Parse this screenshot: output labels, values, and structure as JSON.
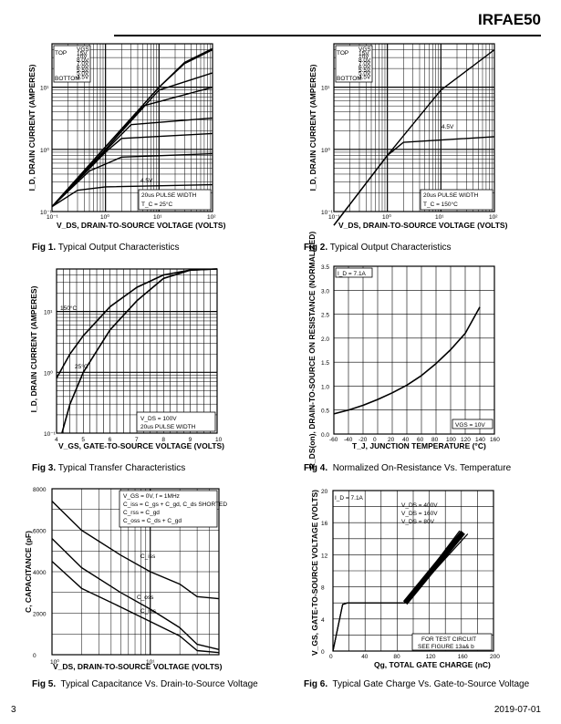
{
  "header": {
    "part_number": "IRFAE50"
  },
  "footer": {
    "page_number": "3",
    "date": "2019-07-01"
  },
  "figures": [
    {
      "caption_num": "Fig 1.",
      "caption_text": "Typical Output Characteristics",
      "ylabel": "I_D, DRAIN CURRENT (AMPERES)",
      "xlabel": "V_DS, DRAIN-TO-SOURCE VOLTAGE (VOLTS)",
      "x_ticks": [
        "10⁻¹",
        "10⁰",
        "10¹",
        "10²"
      ],
      "y_ticks": [
        "10¹",
        "10⁰",
        "10⁻¹"
      ],
      "vgs_table": {
        "header": "VGS",
        "top": "TOP",
        "bottom": "BOTTOM",
        "rows": [
          "15V",
          "10V",
          "8.0V",
          "7.0V",
          "6.0V",
          "5.5V",
          "5.0V",
          "4.5V"
        ]
      },
      "curve_label": "4.5V",
      "note1": "20us PULSE WIDTH",
      "note2": "T_C = 25°C"
    },
    {
      "caption_num": "Fig 2.",
      "caption_text": "Typical Output Characteristics",
      "ylabel": "I_D, DRAIN CURRENT (AMPERES)",
      "xlabel": "V_DS, DRAIN-TO-SOURCE VOLTAGE (VOLTS)",
      "x_ticks": [
        "10⁻¹",
        "10⁰",
        "10¹",
        "10²"
      ],
      "y_ticks": [
        "10¹",
        "10⁰",
        "10⁻¹"
      ],
      "vgs_table": {
        "header": "VGS",
        "top": "TOP",
        "bottom": "BOTTOM",
        "rows": [
          "15V",
          "10V",
          "8.0V",
          "7.0V",
          "6.0V",
          "5.5V",
          "5.0V",
          "4.5V"
        ]
      },
      "curve_label": "4.5V",
      "note1": "20us PULSE WIDTH",
      "note2": "T_C = 150°C"
    },
    {
      "caption_num": "Fig 3.",
      "caption_text": "Typical Transfer Characteristics",
      "ylabel": "I_D, DRAIN CURRENT (AMPERES)",
      "xlabel": "V_GS, GATE-TO-SOURCE VOLTAGE (VOLTS)",
      "x_ticks": [
        "4",
        "5",
        "6",
        "7",
        "8",
        "9",
        "10"
      ],
      "y_ticks": [
        "10¹",
        "10⁰",
        "10⁻¹"
      ],
      "label_hot": "150°C",
      "label_cold": "25°C",
      "note1": "V_DS = 100V",
      "note2": "20us PULSE WIDTH"
    },
    {
      "caption_num": "Fig 4.",
      "caption_text": "Normalized On-Resistance  Vs. Temperature",
      "ylabel": "R_DS(on), DRAIN-TO-SOURCE ON RESISTANCE (NORMALIZED)",
      "xlabel": "T_J, JUNCTION TEMPERATURE (°C)",
      "x_ticks": [
        "-60",
        "-40",
        "-20",
        "0",
        "20",
        "40",
        "60",
        "80",
        "100",
        "120",
        "140",
        "160"
      ],
      "y_ticks": [
        "3.5",
        "3.0",
        "2.5",
        "2.0",
        "1.5",
        "1.0",
        "0.5",
        "0.0"
      ],
      "note1": "I_D = 7.1A",
      "note2": "VGS = 10V"
    },
    {
      "caption_num": "Fig 5.",
      "caption_text": "Typical Capacitance Vs. Drain-to-Source Voltage",
      "ylabel": "C, CAPACITANCE (pF)",
      "xlabel": "V_DS, DRAIN-TO-SOURCE VOLTAGE (VOLTS)",
      "x_ticks": [
        "10⁰",
        "10¹"
      ],
      "y_ticks": [
        "8000",
        "6000",
        "4000",
        "2000",
        "0"
      ],
      "legend": [
        "V_GS = 0V,  f = 1MHz",
        "C_iss = C_gs + C_gd, C_ds SHORTED",
        "C_rss = C_gd",
        "C_oss = C_ds + C_gd"
      ],
      "curve_labels": [
        "C_iss",
        "C_oss",
        "C_rss"
      ]
    },
    {
      "caption_num": "Fig 6.",
      "caption_text": "Typical Gate Charge Vs. Gate-to-Source Voltage",
      "ylabel": "V_GS, GATE-TO-SOURCE VOLTAGE (VOLTS)",
      "xlabel": "Qg, TOTAL GATE CHARGE (nC)",
      "x_ticks": [
        "0",
        "40",
        "80",
        "120",
        "160",
        "200"
      ],
      "y_ticks": [
        "20",
        "16",
        "12",
        "8",
        "4",
        "0"
      ],
      "note1": "I_D = 7.1A",
      "vds_labels": [
        "V_DS = 400V",
        "V_DS = 160V",
        "V_DS = 80V"
      ],
      "test_note1": "FOR TEST CIRCUIT",
      "test_note2": "SEE FIGURE 13a& b"
    }
  ],
  "chart_data": [
    {
      "type": "line",
      "title": "Typical Output Characteristics",
      "xscale": "log",
      "yscale": "log",
      "xlim": [
        0.1,
        100
      ],
      "ylim": [
        0.1,
        50
      ],
      "series": [
        {
          "name": "15V",
          "x": [
            0.1,
            1,
            10,
            30,
            100
          ],
          "y": [
            0.12,
            1.1,
            10,
            25,
            42
          ]
        },
        {
          "name": "10V",
          "x": [
            0.1,
            1,
            10,
            30,
            100
          ],
          "y": [
            0.12,
            1.1,
            10,
            24,
            40
          ]
        },
        {
          "name": "8.0V",
          "x": [
            0.1,
            1,
            10,
            100
          ],
          "y": [
            0.12,
            1.0,
            9,
            17
          ]
        },
        {
          "name": "7.0V",
          "x": [
            0.1,
            1,
            5,
            100
          ],
          "y": [
            0.12,
            1.0,
            5,
            10
          ]
        },
        {
          "name": "6.0V",
          "x": [
            0.1,
            1,
            3,
            100
          ],
          "y": [
            0.12,
            0.95,
            2.5,
            3.2
          ]
        },
        {
          "name": "5.5V",
          "x": [
            0.1,
            1,
            2,
            100
          ],
          "y": [
            0.12,
            0.9,
            1.5,
            1.8
          ]
        },
        {
          "name": "5.0V",
          "x": [
            0.1,
            0.5,
            2,
            100
          ],
          "y": [
            0.12,
            0.45,
            0.75,
            0.85
          ]
        },
        {
          "name": "4.5V",
          "x": [
            0.1,
            0.3,
            1,
            100
          ],
          "y": [
            0.12,
            0.22,
            0.25,
            0.27
          ]
        }
      ]
    },
    {
      "type": "line",
      "title": "Typical Output Characteristics",
      "xscale": "log",
      "yscale": "log",
      "xlim": [
        0.1,
        100
      ],
      "ylim": [
        0.1,
        50
      ],
      "series": [
        {
          "name": "15V",
          "x": [
            0.1,
            1,
            10,
            100
          ],
          "y": [
            0.06,
            0.8,
            9,
            40
          ]
        },
        {
          "name": "4.5V",
          "x": [
            0.1,
            1,
            2,
            100
          ],
          "y": [
            0.06,
            0.8,
            1.3,
            1.6
          ]
        }
      ]
    },
    {
      "type": "line",
      "title": "Typical Transfer Characteristics",
      "xscale": "linear",
      "yscale": "log",
      "xlim": [
        4,
        10
      ],
      "ylim": [
        0.1,
        50
      ],
      "series": [
        {
          "name": "150°C",
          "x": [
            4,
            4.5,
            5,
            6,
            7,
            8,
            9,
            10
          ],
          "y": [
            0.8,
            2,
            4,
            12,
            25,
            40,
            48,
            50
          ]
        },
        {
          "name": "25°C",
          "x": [
            4.2,
            4.5,
            5,
            6,
            7,
            8,
            9,
            10
          ],
          "y": [
            0.1,
            0.3,
            1,
            5,
            15,
            35,
            48,
            50
          ]
        }
      ]
    },
    {
      "type": "line",
      "title": "Normalized On-Resistance  Vs. Temperature",
      "xlim": [
        -60,
        160
      ],
      "ylim": [
        0,
        3.5
      ],
      "series": [
        {
          "name": "R_DS(on)",
          "x": [
            -60,
            -40,
            -20,
            0,
            20,
            40,
            60,
            80,
            100,
            120,
            140
          ],
          "y": [
            0.42,
            0.5,
            0.6,
            0.72,
            0.86,
            1.02,
            1.22,
            1.47,
            1.76,
            2.1,
            2.65
          ]
        }
      ]
    },
    {
      "type": "line",
      "title": "Typical Capacitance Vs. Drain-to-Source Voltage",
      "xscale": "log",
      "xlim": [
        1,
        50
      ],
      "ylim": [
        0,
        8000
      ],
      "series": [
        {
          "name": "C_iss",
          "x": [
            1,
            2,
            5,
            10,
            20,
            30,
            50
          ],
          "y": [
            7400,
            6000,
            4800,
            4000,
            3400,
            2800,
            2700
          ]
        },
        {
          "name": "C_oss",
          "x": [
            1,
            2,
            5,
            10,
            20,
            30,
            50
          ],
          "y": [
            5600,
            4200,
            3000,
            2200,
            1300,
            500,
            250
          ]
        },
        {
          "name": "C_rss",
          "x": [
            1,
            2,
            5,
            10,
            20,
            30,
            50
          ],
          "y": [
            4500,
            3200,
            2300,
            1600,
            900,
            200,
            100
          ]
        }
      ]
    },
    {
      "type": "line",
      "title": "Typical Gate Charge Vs. Gate-to-Source Voltage",
      "xlim": [
        0,
        200
      ],
      "ylim": [
        0,
        20
      ],
      "series": [
        {
          "name": "V_DS = 400V",
          "x": [
            0,
            12,
            18,
            90,
            168
          ],
          "y": [
            0,
            5.8,
            6,
            6,
            14.6
          ]
        },
        {
          "name": "V_DS = 160V",
          "x": [
            0,
            12,
            18,
            90,
            162
          ],
          "y": [
            0,
            5.8,
            6,
            6,
            14.8
          ]
        },
        {
          "name": "V_DS = 80V",
          "x": [
            0,
            12,
            18,
            90,
            158
          ],
          "y": [
            0,
            5.8,
            6,
            6,
            15
          ]
        }
      ]
    }
  ]
}
